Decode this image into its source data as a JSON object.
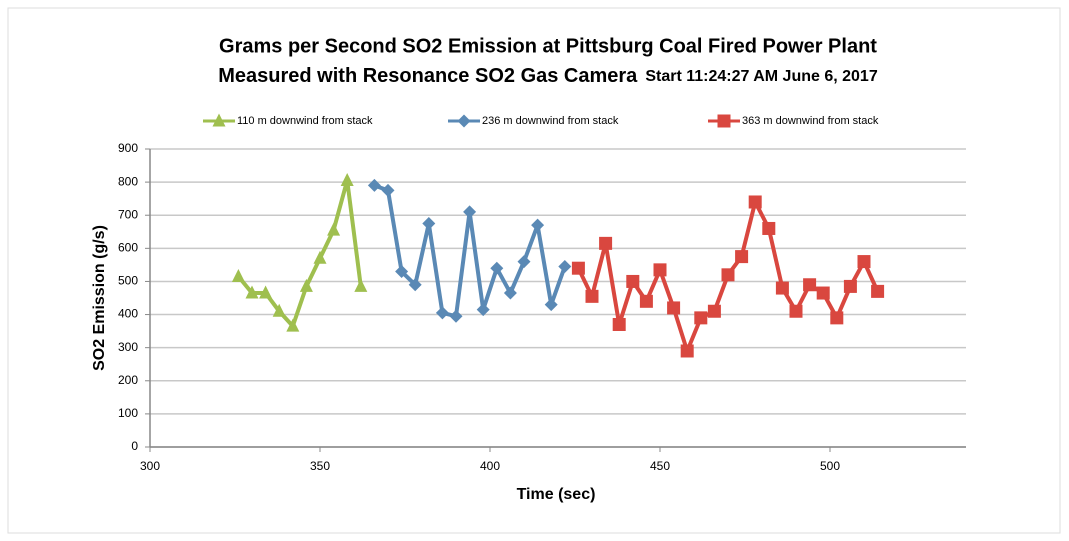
{
  "chart_data": {
    "type": "line",
    "title": "Grams per Second SO2 Emission  at Pittsburg Coal Fired Power Plant",
    "subtitle": "Measured with Resonance SO2 Gas Camera",
    "annotation": "Start 11:24:27 AM June 6, 2017",
    "x_label": "Time (sec)",
    "y_label": "SO2 Emission (g/s)",
    "xlim": [
      300,
      540
    ],
    "xticks": [
      300,
      350,
      400,
      450,
      500
    ],
    "ylim": [
      0,
      900
    ],
    "yticks": [
      0,
      100,
      200,
      300,
      400,
      500,
      600,
      700,
      800,
      900
    ],
    "grid": true,
    "legend": "top",
    "series": [
      {
        "name": "110 m downwind from stack",
        "color": "#9fbf4f",
        "marker": "triangle",
        "x": [
          326,
          330,
          334,
          338,
          342,
          346,
          350,
          354,
          358,
          362
        ],
        "values": [
          515,
          465,
          465,
          410,
          365,
          485,
          570,
          655,
          805,
          485
        ]
      },
      {
        "name": "236 m downwind from stack",
        "color": "#5a89b5",
        "marker": "diamond",
        "x": [
          366,
          370,
          374,
          378,
          382,
          386,
          390,
          394,
          398,
          402,
          406,
          410,
          414,
          418,
          422
        ],
        "values": [
          790,
          775,
          530,
          490,
          675,
          405,
          395,
          710,
          415,
          540,
          465,
          560,
          670,
          430,
          545
        ]
      },
      {
        "name": "363 m downwind from stack",
        "color": "#d9473f",
        "marker": "square",
        "x": [
          426,
          430,
          434,
          438,
          442,
          446,
          450,
          454,
          458,
          462,
          466,
          470,
          474,
          478,
          482,
          486,
          490,
          494,
          498,
          502,
          506,
          510,
          514
        ],
        "values": [
          540,
          455,
          615,
          370,
          500,
          440,
          535,
          420,
          290,
          390,
          410,
          520,
          575,
          740,
          660,
          480,
          410,
          490,
          465,
          390,
          485,
          560,
          470
        ]
      }
    ]
  }
}
